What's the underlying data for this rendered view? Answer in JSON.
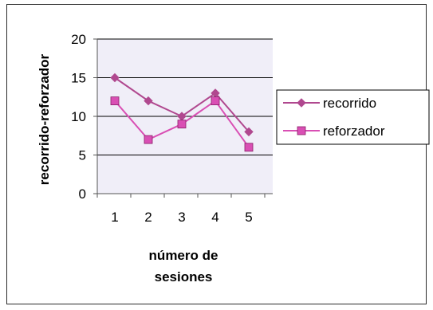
{
  "chart_data": {
    "type": "line",
    "x": [
      1,
      2,
      3,
      4,
      5
    ],
    "xlabel_lines": [
      "número de",
      "sesiones"
    ],
    "ylabel": "recorrido-reforzador",
    "ylim": [
      0,
      20
    ],
    "yticks": [
      0,
      5,
      10,
      15,
      20
    ],
    "grid": "horizontal",
    "legend": "right",
    "plot_background": "#f0eef8",
    "series": [
      {
        "name": "recorrido",
        "values": [
          15,
          12,
          10,
          13,
          8
        ],
        "color": "#b0488f",
        "marker": "diamond"
      },
      {
        "name": "reforzador",
        "values": [
          12,
          7,
          9,
          12,
          6
        ],
        "color": "#d94fb4",
        "marker": "square"
      }
    ]
  }
}
